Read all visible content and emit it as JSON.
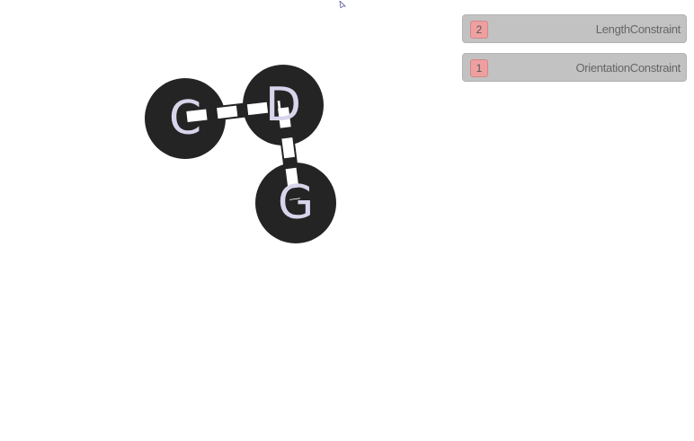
{
  "graph": {
    "nodes": [
      {
        "id": "C",
        "label": "C"
      },
      {
        "id": "D",
        "label": "D"
      },
      {
        "id": "G",
        "label": "G"
      }
    ],
    "edges": [
      {
        "from": "C",
        "to": "D"
      },
      {
        "from": "D",
        "to": "G"
      }
    ],
    "colors": {
      "node_fill": "#242424",
      "node_label": "#d9d4ec",
      "edge_stroke": "#242424",
      "edge_dash": "#ffffff"
    }
  },
  "constraints_panel": {
    "items": [
      {
        "count": "2",
        "name": "LengthConstraint"
      },
      {
        "count": "1",
        "name": "OrientationConstraint"
      }
    ],
    "colors": {
      "item_bg": "#c2c2c2",
      "badge_bg": "#eea0a0"
    }
  },
  "cursor": {
    "icon": "pointer-cursor-icon"
  }
}
